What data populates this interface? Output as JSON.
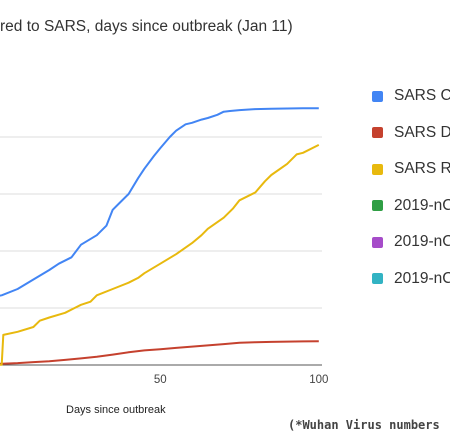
{
  "chart_data": {
    "type": "line",
    "title": "red to SARS, days since outbreak (Jan 11)",
    "xlabel": "Days since outbreak",
    "ylabel": "",
    "xlim": [
      -10,
      101
    ],
    "ylim": [
      0,
      9000
    ],
    "x_ticks": [
      50,
      100
    ],
    "grid": true,
    "legend_position": "right",
    "series": [
      {
        "name": "SARS Ca",
        "color": "#4285f4",
        "x": [
          -10,
          0,
          5,
          10,
          15,
          18,
          22,
          25,
          30,
          33,
          35,
          37,
          40,
          43,
          45,
          48,
          50,
          53,
          55,
          58,
          60,
          63,
          65,
          68,
          70,
          72,
          75,
          78,
          80,
          85,
          90,
          95,
          100
        ],
        "y": [
          2000,
          2200,
          2400,
          2700,
          3000,
          3200,
          3400,
          3800,
          4100,
          4400,
          4900,
          5100,
          5400,
          5900,
          6200,
          6600,
          6850,
          7200,
          7400,
          7600,
          7650,
          7750,
          7800,
          7900,
          8000,
          8020,
          8050,
          8070,
          8080,
          8090,
          8100,
          8110,
          8110
        ]
      },
      {
        "name": "SARS De",
        "color": "#c5412e",
        "x": [
          -10,
          0,
          5,
          10,
          15,
          20,
          25,
          30,
          35,
          40,
          45,
          50,
          55,
          60,
          65,
          70,
          75,
          80,
          85,
          90,
          95,
          100
        ],
        "y": [
          0,
          40,
          60,
          90,
          120,
          160,
          210,
          260,
          330,
          400,
          460,
          500,
          540,
          580,
          620,
          660,
          700,
          720,
          730,
          740,
          745,
          750
        ]
      },
      {
        "name": "SARS Re",
        "color": "#e8b90e",
        "x": [
          -10,
          0,
          0.5,
          5,
          10,
          12,
          15,
          20,
          23,
          25,
          28,
          30,
          35,
          40,
          43,
          45,
          50,
          55,
          60,
          63,
          65,
          70,
          73,
          75,
          80,
          83,
          85,
          90,
          93,
          95,
          100
        ],
        "y": [
          0,
          10,
          950,
          1050,
          1200,
          1400,
          1500,
          1650,
          1800,
          1900,
          2000,
          2200,
          2400,
          2600,
          2750,
          2900,
          3200,
          3500,
          3850,
          4100,
          4300,
          4650,
          4950,
          5200,
          5450,
          5800,
          6000,
          6350,
          6650,
          6700,
          6950
        ]
      },
      {
        "name": "2019-nC",
        "color": "#2f9e44",
        "x": [],
        "y": []
      },
      {
        "name": "2019-nC",
        "color": "#a64cc9",
        "x": [],
        "y": []
      },
      {
        "name": "2019-nC",
        "color": "#32b3c3",
        "x": [],
        "y": []
      }
    ]
  },
  "footnote": "(*Wuhan Virus numbers"
}
